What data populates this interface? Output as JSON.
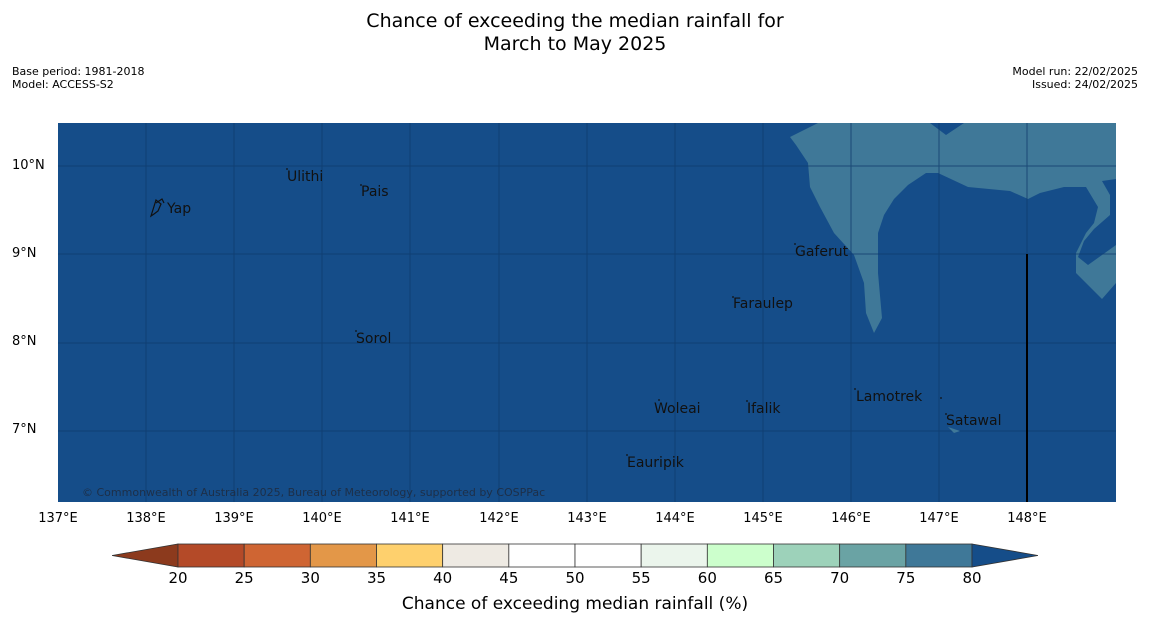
{
  "title": {
    "line1": "Chance of exceeding the median rainfall for",
    "line2": "March to May 2025"
  },
  "meta": {
    "base_period": "Base period: 1981-2018",
    "model": "Model: ACCESS-S2",
    "model_run": "Model run: 22/02/2025",
    "issued": "Issued: 24/02/2025"
  },
  "map": {
    "ocean_color": "#154d89",
    "lighter_zone_color": "#3f7898",
    "lon_labels": [
      "137°E",
      "138°E",
      "139°E",
      "140°E",
      "141°E",
      "142°E",
      "143°E",
      "144°E",
      "145°E",
      "146°E",
      "147°E",
      "148°E"
    ],
    "lat_labels": [
      "10°N",
      "9°N",
      "8°N",
      "7°N"
    ],
    "places": [
      "Yap",
      "Ulithi",
      "Pais",
      "Gaferut",
      "Faraulep",
      "Sorol",
      "Lamotrek",
      "Woleai",
      "Ifalik",
      "Satawal",
      "Eauripik"
    ],
    "copyright": "© Commonwealth of Australia 2025, Bureau of Meteorology, supported by COSPPac"
  },
  "colorbar": {
    "title": "Chance of exceeding median rainfall (%)",
    "ticks": [
      "20",
      "25",
      "30",
      "35",
      "40",
      "45",
      "50",
      "55",
      "60",
      "65",
      "70",
      "75",
      "80"
    ],
    "colors": [
      "#8c3a1d",
      "#b44a28",
      "#cf6533",
      "#e39748",
      "#fed06d",
      "#eeeae3",
      "#ffffff",
      "#ffffff",
      "#ebf5ec",
      "#ccffcc",
      "#9dd2ba",
      "#6aa3a4",
      "#3f7898",
      "#154d89"
    ]
  }
}
